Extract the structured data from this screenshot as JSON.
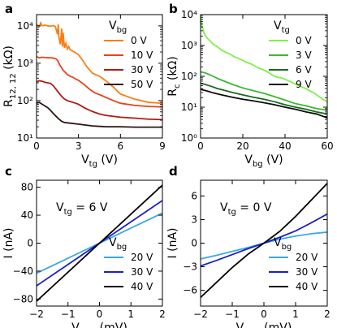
{
  "chart_data": [
    {
      "panel": "a",
      "type": "line",
      "xlabel": "V",
      "xlabel_sub": "tg",
      "xlabel_unit": " (V)",
      "ylabel": "R",
      "ylabel_sub": "12, 12",
      "ylabel_unit": " (kΩ)",
      "xlim": [
        0,
        9
      ],
      "ylim": [
        10,
        20000
      ],
      "yscale": "log",
      "xticks": [
        0,
        3,
        6,
        9
      ],
      "xtick_labels": [
        "0",
        "3",
        "6",
        "9"
      ],
      "yticks": [
        10,
        100,
        1000,
        10000
      ],
      "ytick_labels": [
        "10¹",
        "10²",
        "10³",
        "10⁴"
      ],
      "legend_title": "V",
      "legend_title_sub": "bg",
      "legend_position": "top-right",
      "series": [
        {
          "name": "0 V",
          "color": "#f97e14",
          "x": [
            0,
            0.2,
            0.3,
            0.4,
            0.6,
            0.8,
            1.0,
            1.2,
            1.35,
            1.5,
            1.55,
            1.6,
            1.7,
            1.8,
            1.85,
            1.9,
            2.0,
            2.1,
            2.2,
            2.3,
            2.4,
            2.5,
            2.7,
            3.0,
            3.3,
            3.6,
            4.0,
            4.5,
            5.0,
            5.5,
            6.0,
            7.0,
            8.0,
            9.0
          ],
          "y": [
            11000,
            9500,
            12000,
            10000,
            10500,
            10000,
            9800,
            10200,
            9500,
            6000,
            11000,
            5000,
            3200,
            8500,
            2800,
            6500,
            2600,
            3400,
            2400,
            2800,
            2300,
            2200,
            2000,
            1700,
            1200,
            800,
            540,
            450,
            330,
            230,
            150,
            110,
            90,
            85
          ]
        },
        {
          "name": "10 V",
          "color": "#e8421a",
          "x": [
            0,
            0.2,
            0.4,
            0.6,
            0.8,
            1.0,
            1.2,
            1.4,
            1.5,
            1.6,
            1.7,
            1.8,
            1.9,
            2.0,
            2.1,
            2.2,
            2.4,
            2.6,
            2.8,
            3.0,
            3.4,
            3.8,
            4.2,
            4.6,
            5.0,
            5.5,
            6.0,
            7.0,
            8.0,
            9.0
          ],
          "y": [
            1500,
            1400,
            1450,
            1420,
            1400,
            1400,
            1380,
            1300,
            1200,
            1000,
            850,
            750,
            650,
            600,
            550,
            500,
            450,
            420,
            380,
            350,
            270,
            200,
            160,
            140,
            120,
            100,
            85,
            75,
            70,
            68
          ]
        },
        {
          "name": "30 V",
          "color": "#b01a14",
          "x": [
            0,
            0.2,
            0.4,
            0.6,
            0.8,
            1.0,
            1.2,
            1.4,
            1.6,
            1.8,
            2.0,
            2.2,
            2.4,
            2.6,
            2.8,
            3.0,
            3.4,
            3.8,
            4.2,
            4.6,
            5.0,
            6.0,
            7.0,
            8.0,
            9.0
          ],
          "y": [
            320,
            340,
            330,
            310,
            300,
            290,
            250,
            200,
            160,
            130,
            110,
            100,
            95,
            90,
            85,
            80,
            65,
            55,
            48,
            43,
            40,
            36,
            34,
            32,
            31
          ]
        },
        {
          "name": "50 V",
          "color": "#2b1412",
          "x": [
            0,
            0.2,
            0.4,
            0.6,
            0.8,
            1.0,
            1.2,
            1.4,
            1.6,
            1.8,
            2.0,
            2.4,
            2.8,
            3.2,
            3.6,
            4.0,
            5.0,
            6.0,
            7.0,
            8.0,
            9.0
          ],
          "y": [
            85,
            90,
            80,
            72,
            65,
            55,
            45,
            38,
            32,
            28,
            26,
            25,
            24,
            23,
            22,
            21,
            20,
            20,
            19.5,
            19.5,
            19.5
          ]
        }
      ]
    },
    {
      "panel": "b",
      "type": "line",
      "xlabel": "V",
      "xlabel_sub": "bg",
      "xlabel_unit": " (V)",
      "ylabel": "R",
      "ylabel_sub": "c",
      "ylabel_unit": " (kΩ)",
      "xlim": [
        0,
        60
      ],
      "ylim": [
        1,
        10000
      ],
      "yscale": "log",
      "xticks": [
        0,
        20,
        40,
        60
      ],
      "xtick_labels": [
        "0",
        "20",
        "40",
        "60"
      ],
      "yticks": [
        1,
        10,
        100,
        1000,
        10000
      ],
      "ytick_labels": [
        "10⁰",
        "10¹",
        "10²",
        "10³",
        "10⁴"
      ],
      "legend_title": "V",
      "legend_title_sub": "tg",
      "legend_position": "top-right",
      "series": [
        {
          "name": "0 V",
          "color": "#80f04a",
          "x": [
            0,
            0.5,
            1,
            2,
            3,
            4,
            6,
            8,
            10,
            12,
            14,
            16,
            18,
            20,
            22,
            24,
            26,
            28,
            30,
            32,
            34,
            36,
            38,
            40,
            42,
            44,
            46,
            48,
            50,
            52,
            54,
            56,
            58,
            60
          ],
          "y": [
            9000,
            5000,
            3500,
            2200,
            1800,
            1500,
            1100,
            900,
            700,
            600,
            520,
            430,
            380,
            330,
            280,
            250,
            210,
            180,
            160,
            135,
            110,
            95,
            90,
            80,
            70,
            60,
            52,
            45,
            40,
            33,
            28,
            22,
            18,
            15
          ]
        },
        {
          "name": "3 V",
          "color": "#3cb832",
          "x": [
            0,
            2,
            4,
            6,
            8,
            10,
            15,
            20,
            25,
            30,
            35,
            40,
            45,
            50,
            55,
            60
          ],
          "y": [
            140,
            130,
            115,
            100,
            85,
            75,
            55,
            42,
            34,
            28,
            22,
            17,
            13,
            11,
            9,
            8
          ]
        },
        {
          "name": "6 V",
          "color": "#1c6a1c",
          "x": [
            0,
            2,
            4,
            6,
            8,
            10,
            15,
            20,
            25,
            30,
            35,
            40,
            45,
            50,
            55,
            60
          ],
          "y": [
            60,
            55,
            50,
            45,
            40,
            37,
            30,
            25,
            21,
            18,
            15,
            12,
            10,
            8.5,
            7,
            6
          ]
        },
        {
          "name": "9 V",
          "color": "#0d0d0d",
          "x": [
            0,
            2,
            4,
            6,
            8,
            10,
            15,
            20,
            25,
            30,
            35,
            40,
            45,
            50,
            55,
            60
          ],
          "y": [
            38,
            35,
            32,
            29,
            27,
            25,
            21,
            18,
            16,
            14,
            12,
            10,
            8.5,
            7,
            6,
            4.5
          ]
        }
      ]
    },
    {
      "panel": "c",
      "type": "line",
      "annotation": "V",
      "annotation_sub": "tg",
      "annotation_suffix": " = 6 V",
      "xlabel": "V",
      "xlabel_sub": "bias",
      "xlabel_unit": " (mV)",
      "ylabel": "I (nA)",
      "xlim": [
        -2,
        2
      ],
      "ylim": [
        -90,
        90
      ],
      "xticks": [
        -2,
        -1,
        0,
        1,
        2
      ],
      "xtick_labels": [
        "−2",
        "−1",
        "0",
        "1",
        "2"
      ],
      "yticks": [
        -80,
        -40,
        0,
        40,
        80
      ],
      "ytick_labels": [
        "−80",
        "−40",
        "0",
        "40",
        "80"
      ],
      "legend_title": "V",
      "legend_title_sub": "bg",
      "legend_position": "lower-right",
      "series": [
        {
          "name": "20 V",
          "color": "#3aa8e8",
          "x": [
            -2,
            -1,
            0,
            1,
            2
          ],
          "y": [
            -43,
            -21.5,
            0,
            21.5,
            43
          ]
        },
        {
          "name": "30 V",
          "color": "#1a20c8",
          "x": [
            -2,
            -1,
            0,
            1,
            2
          ],
          "y": [
            -61,
            -30.5,
            0,
            30.5,
            61
          ]
        },
        {
          "name": "40 V",
          "color": "#000000",
          "x": [
            -2,
            -1,
            0,
            1,
            2
          ],
          "y": [
            -83,
            -41.5,
            0,
            41.5,
            83
          ]
        }
      ]
    },
    {
      "panel": "d",
      "type": "line",
      "annotation": "V",
      "annotation_sub": "tg",
      "annotation_suffix": " = 0 V",
      "xlabel": "V",
      "xlabel_sub": "bias",
      "xlabel_unit": " (mV)",
      "ylabel": "I (nA)",
      "xlim": [
        -2,
        2
      ],
      "ylim": [
        -8,
        8
      ],
      "xticks": [
        -2,
        -1,
        0,
        1,
        2
      ],
      "xtick_labels": [
        "−2",
        "−1",
        "0",
        "1",
        "2"
      ],
      "yticks": [
        -6,
        -3,
        0,
        3,
        6
      ],
      "ytick_labels": [
        "−6",
        "−3",
        "0",
        "3",
        "6"
      ],
      "legend_title": "V",
      "legend_title_sub": "bg",
      "legend_position": "lower-right",
      "series": [
        {
          "name": "20 V",
          "color": "#3aa8e8",
          "x": [
            -2,
            -1.5,
            -1,
            -0.5,
            0,
            0.5,
            1,
            1.5,
            2
          ],
          "y": [
            -2.0,
            -1.55,
            -1.05,
            -0.55,
            0,
            0.5,
            0.9,
            1.2,
            1.4
          ]
        },
        {
          "name": "30 V",
          "color": "#1a20c8",
          "x": [
            -2,
            -1.5,
            -1,
            -0.5,
            0,
            0.5,
            1,
            1.5,
            2
          ],
          "y": [
            -2.9,
            -2.2,
            -1.45,
            -0.7,
            0,
            0.75,
            1.55,
            2.6,
            3.7
          ]
        },
        {
          "name": "40 V",
          "color": "#000000",
          "x": [
            -2,
            -1.5,
            -1,
            -0.5,
            0,
            0.5,
            1,
            1.5,
            2
          ],
          "y": [
            -6.9,
            -5.0,
            -3.1,
            -1.4,
            0,
            1.5,
            3.4,
            5.5,
            7.6
          ]
        }
      ]
    }
  ]
}
